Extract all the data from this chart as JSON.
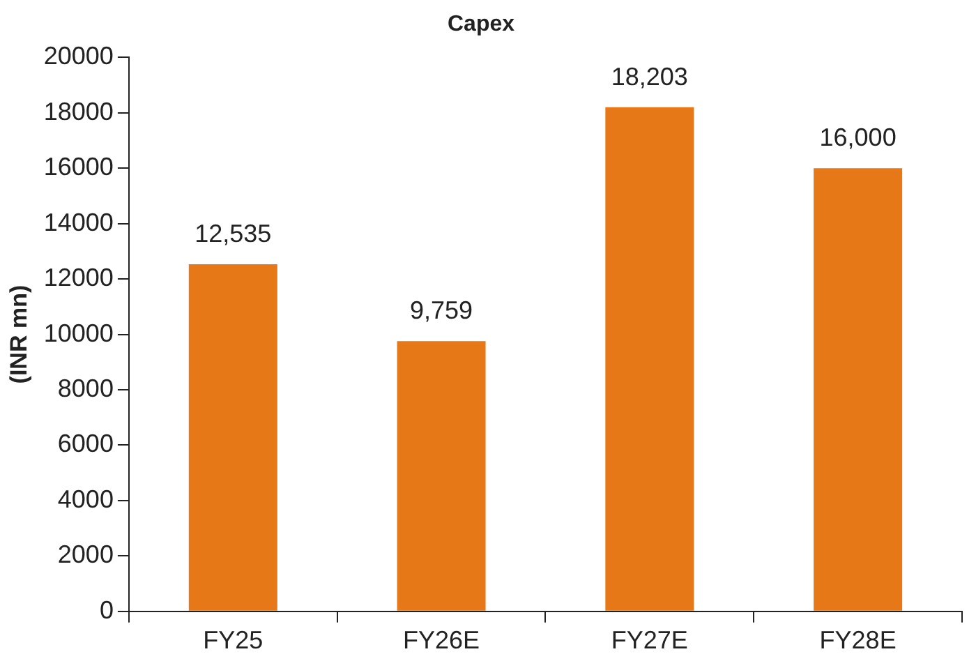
{
  "chart_data": {
    "type": "bar",
    "title": "Capex",
    "ylabel": "(INR mn)",
    "categories": [
      "FY25",
      "FY26E",
      "FY27E",
      "FY28E"
    ],
    "values": [
      12535,
      9759,
      18203,
      16000
    ],
    "value_labels": [
      "12,535",
      "9,759",
      "18,203",
      "16,000"
    ],
    "color": "#e67817",
    "ylim": [
      0,
      20000
    ],
    "yticks": [
      0,
      2000,
      4000,
      6000,
      8000,
      10000,
      12000,
      14000,
      16000,
      18000,
      20000
    ],
    "grid": false,
    "legend": false
  }
}
